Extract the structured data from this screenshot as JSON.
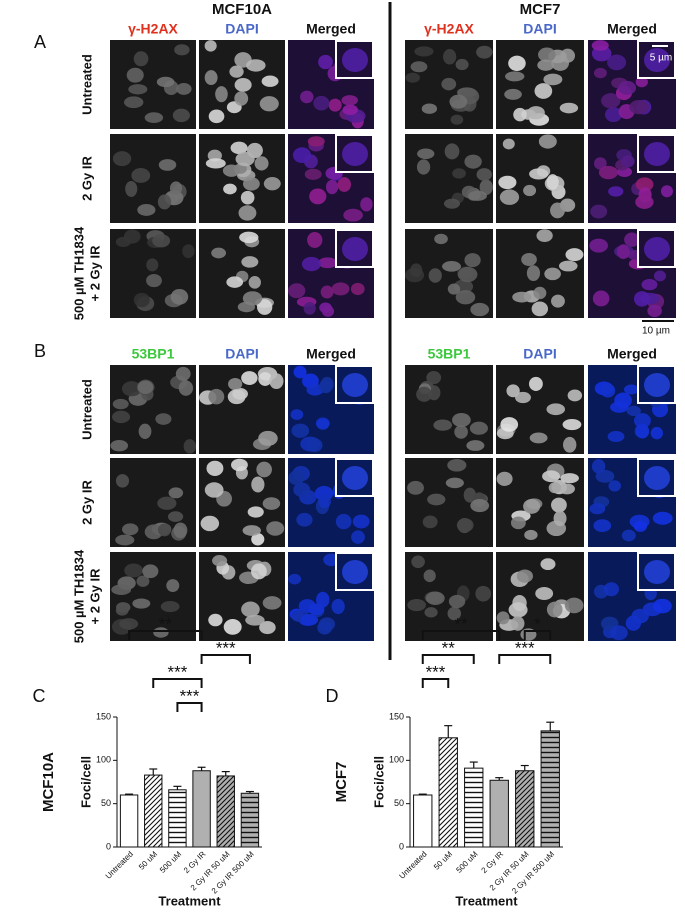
{
  "figure": {
    "cell_lines": [
      "MCF10A",
      "MCF7"
    ],
    "panels": [
      {
        "label": "A",
        "columns": [
          "γ-H2AX",
          "DAPI",
          "Merged"
        ],
        "column_colors": [
          "#e0301e",
          "#4a68c8",
          "#111111"
        ],
        "rows": [
          [
            "Untreated"
          ],
          [
            "2 Gy IR"
          ],
          [
            "500 µM TH1834",
            "+ 2 Gy IR"
          ]
        ]
      },
      {
        "label": "B",
        "columns": [
          "53BP1",
          "DAPI",
          "Merged"
        ],
        "column_colors": [
          "#3cc83c",
          "#4a68c8",
          "#111111"
        ],
        "rows": [
          [
            "Untreated"
          ],
          [
            "2 Gy IR"
          ],
          [
            "500 µM TH1834",
            "+ 2 Gy IR"
          ]
        ]
      }
    ],
    "scale_bars": [
      "5 µm",
      "10 µm"
    ]
  },
  "chart_data": [
    {
      "type": "bar",
      "label": "C",
      "side_label": "MCF10A",
      "y_label": "Foci/cell",
      "x_label": "Treatment",
      "categories": [
        "Untreated",
        "50 uM",
        "500 uM",
        "2 Gy IR",
        "2 Gy IR 50 uM",
        "2 Gy IR 500 uM"
      ],
      "values": [
        60,
        83,
        66,
        88,
        82,
        62
      ],
      "errors": [
        1,
        7,
        4,
        4,
        5,
        2
      ],
      "colors": [
        "#ffffff",
        "#ffffff",
        "#ffffff",
        "#b0b0b0",
        "#b0b0b0",
        "#b0b0b0"
      ],
      "patterns": [
        "none",
        "diagonal",
        "horizontal",
        "none",
        "diagonal",
        "horizontal"
      ],
      "ylim": [
        0,
        150
      ],
      "yticks": [
        0,
        50,
        100,
        150
      ],
      "significance": [
        {
          "from": 0,
          "to": 3,
          "label": "**"
        },
        {
          "from": 3,
          "to": 5,
          "label": "***"
        },
        {
          "from": 1,
          "to": 3,
          "label": "***"
        },
        {
          "from": 2,
          "to": 3,
          "label": "***"
        }
      ]
    },
    {
      "type": "bar",
      "label": "D",
      "side_label": "MCF7",
      "y_label": "Foci/cell",
      "x_label": "Treatment",
      "categories": [
        "Untreated",
        "50 uM",
        "500 uM",
        "2 Gy IR",
        "2 Gy IR 50 uM",
        "2 Gy IR 500 uM"
      ],
      "values": [
        60,
        126,
        91,
        77,
        88,
        134
      ],
      "errors": [
        1,
        14,
        7,
        3,
        6,
        10
      ],
      "colors": [
        "#ffffff",
        "#ffffff",
        "#ffffff",
        "#b0b0b0",
        "#b0b0b0",
        "#b0b0b0"
      ],
      "patterns": [
        "none",
        "diagonal",
        "horizontal",
        "none",
        "diagonal",
        "horizontal"
      ],
      "ylim": [
        0,
        150
      ],
      "yticks": [
        0,
        50,
        100,
        150
      ],
      "significance": [
        {
          "from": 0,
          "to": 3,
          "label": "**"
        },
        {
          "from": 0,
          "to": 2,
          "label": "**"
        },
        {
          "from": 3,
          "to": 5,
          "label": "***"
        },
        {
          "from": 0,
          "to": 1,
          "label": "***"
        },
        {
          "from": 4,
          "to": 5,
          "label": "*"
        }
      ]
    }
  ]
}
